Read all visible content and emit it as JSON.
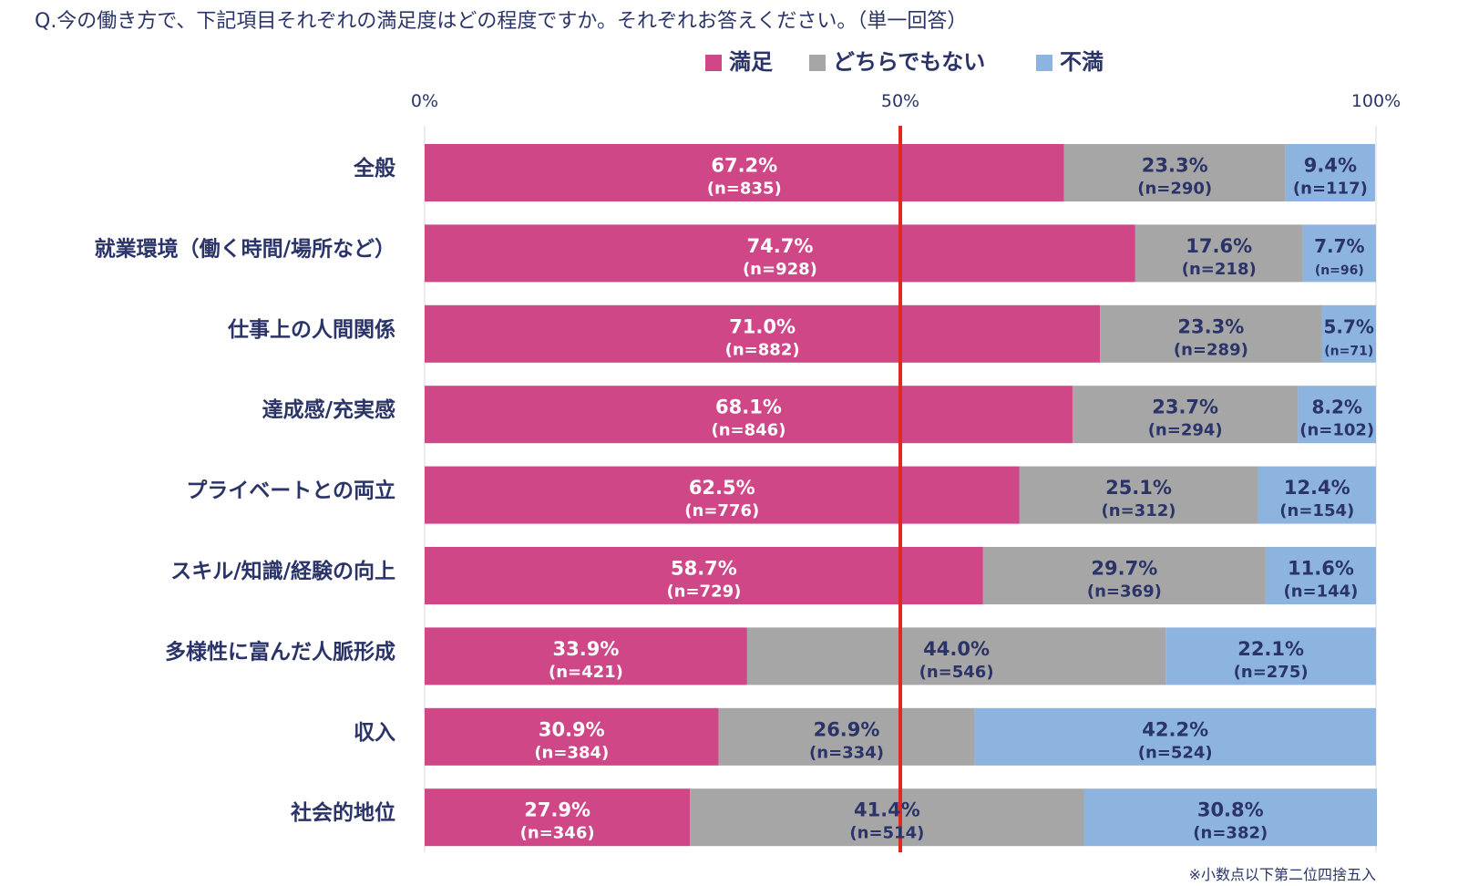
{
  "question": "Q.今の働き方で、下記項目それぞれの満足度はどの程度ですか。それぞれお答えください。（単一回答）",
  "note": "※小数点以下第二位四捨五入",
  "colors": {
    "satisfied": "#cf4786",
    "neutral": "#a6a6a6",
    "dissatisfied": "#8db4de",
    "reference_line": "#e02a1f",
    "text_dark": "#2b3468",
    "text_light": "#ffffff"
  },
  "chart_data": {
    "type": "bar",
    "orientation": "horizontal",
    "stacked": true,
    "xlim": [
      0,
      100
    ],
    "xticks": [
      "0%",
      "50%",
      "100%"
    ],
    "reference_line": 50,
    "legend_position": "top",
    "categories": [
      "全般",
      "就業環境（働く時間/場所など）",
      "仕事上の人間関係",
      "達成感/充実感",
      "プライベートとの両立",
      "スキル/知識/経験の向上",
      "多様性に富んだ人脈形成",
      "収入",
      "社会的地位"
    ],
    "series": [
      {
        "name": "満足",
        "values": [
          67.2,
          74.7,
          71.0,
          68.1,
          62.5,
          58.7,
          33.9,
          30.9,
          27.9
        ],
        "labels": [
          "67.2%",
          "74.7%",
          "71.0%",
          "68.1%",
          "62.5%",
          "58.7%",
          "33.9%",
          "30.9%",
          "27.9%"
        ],
        "counts": [
          "(n=835)",
          "(n=928)",
          "(n=882)",
          "(n=846)",
          "(n=776)",
          "(n=729)",
          "(n=421)",
          "(n=384)",
          "(n=346)"
        ]
      },
      {
        "name": "どちらでもない",
        "values": [
          23.3,
          17.6,
          23.3,
          23.7,
          25.1,
          29.7,
          44.0,
          26.9,
          41.4
        ],
        "labels": [
          "23.3%",
          "17.6%",
          "23.3%",
          "23.7%",
          "25.1%",
          "29.7%",
          "44.0%",
          "26.9%",
          "41.4%"
        ],
        "counts": [
          "(n=290)",
          "(n=218)",
          "(n=289)",
          "(n=294)",
          "(n=312)",
          "(n=369)",
          "(n=546)",
          "(n=334)",
          "(n=514)"
        ]
      },
      {
        "name": "不満",
        "values": [
          9.4,
          7.7,
          5.7,
          8.2,
          12.4,
          11.6,
          22.1,
          42.2,
          30.8
        ],
        "labels": [
          "9.4%",
          "7.7%",
          "5.7%",
          "8.2%",
          "12.4%",
          "11.6%",
          "22.1%",
          "42.2%",
          "30.8%"
        ],
        "counts": [
          "(n=117)",
          "(n=96)",
          "(n=71)",
          "(n=102)",
          "(n=154)",
          "(n=144)",
          "(n=275)",
          "(n=524)",
          "(n=382)"
        ]
      }
    ]
  }
}
